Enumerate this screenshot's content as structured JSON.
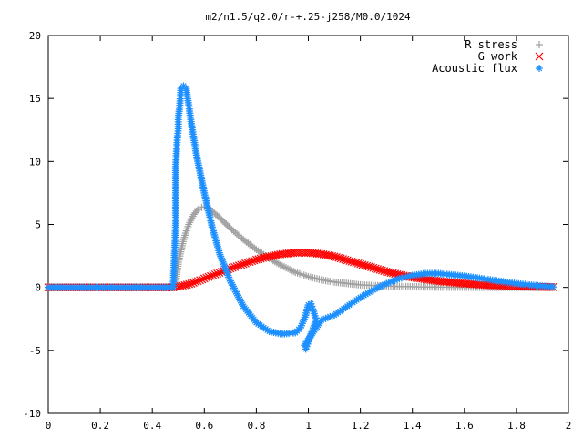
{
  "chart_data": {
    "type": "scatter",
    "title": "m2/n1.5/q2.0/r-+.25-j258/M0.0/1024",
    "xlabel": "",
    "ylabel": "",
    "xlim": [
      0,
      2
    ],
    "ylim": [
      -10,
      20
    ],
    "x_ticks": [
      0,
      0.2,
      0.4,
      0.6,
      0.8,
      1,
      1.2,
      1.4,
      1.6,
      1.8,
      2
    ],
    "y_ticks": [
      -10,
      -5,
      0,
      5,
      10,
      15,
      20
    ],
    "legend_position": "top-right",
    "grid": false,
    "series": [
      {
        "name": "R stress",
        "marker": "plus",
        "color": "#a0a0a0",
        "points": [
          [
            0.0,
            0.0
          ],
          [
            0.1,
            0.0
          ],
          [
            0.2,
            0.0
          ],
          [
            0.3,
            0.0
          ],
          [
            0.4,
            0.0
          ],
          [
            0.48,
            0.0
          ],
          [
            0.49,
            0.4
          ],
          [
            0.5,
            2.0
          ],
          [
            0.52,
            3.8
          ],
          [
            0.54,
            5.0
          ],
          [
            0.56,
            5.8
          ],
          [
            0.58,
            6.3
          ],
          [
            0.6,
            6.4
          ],
          [
            0.62,
            6.2
          ],
          [
            0.65,
            5.7
          ],
          [
            0.7,
            4.7
          ],
          [
            0.75,
            3.8
          ],
          [
            0.8,
            3.0
          ],
          [
            0.85,
            2.3
          ],
          [
            0.9,
            1.7
          ],
          [
            0.95,
            1.2
          ],
          [
            1.0,
            0.85
          ],
          [
            1.05,
            0.6
          ],
          [
            1.1,
            0.42
          ],
          [
            1.2,
            0.2
          ],
          [
            1.3,
            0.1
          ],
          [
            1.4,
            0.05
          ],
          [
            1.5,
            0.02
          ],
          [
            1.6,
            0.01
          ],
          [
            1.7,
            0.0
          ],
          [
            1.8,
            0.0
          ],
          [
            1.94,
            0.0
          ]
        ]
      },
      {
        "name": "G work",
        "marker": "cross",
        "color": "#ff0000",
        "points": [
          [
            0.0,
            0.0
          ],
          [
            0.1,
            0.0
          ],
          [
            0.2,
            0.0
          ],
          [
            0.3,
            0.0
          ],
          [
            0.4,
            0.0
          ],
          [
            0.48,
            0.0
          ],
          [
            0.5,
            0.05
          ],
          [
            0.55,
            0.3
          ],
          [
            0.6,
            0.7
          ],
          [
            0.65,
            1.1
          ],
          [
            0.7,
            1.5
          ],
          [
            0.75,
            1.85
          ],
          [
            0.8,
            2.2
          ],
          [
            0.85,
            2.45
          ],
          [
            0.9,
            2.65
          ],
          [
            0.95,
            2.75
          ],
          [
            1.0,
            2.75
          ],
          [
            1.05,
            2.65
          ],
          [
            1.1,
            2.45
          ],
          [
            1.15,
            2.15
          ],
          [
            1.2,
            1.85
          ],
          [
            1.25,
            1.55
          ],
          [
            1.3,
            1.25
          ],
          [
            1.35,
            1.0
          ],
          [
            1.4,
            0.8
          ],
          [
            1.5,
            0.5
          ],
          [
            1.6,
            0.3
          ],
          [
            1.7,
            0.17
          ],
          [
            1.8,
            0.08
          ],
          [
            1.94,
            0.02
          ]
        ]
      },
      {
        "name": "Acoustic flux",
        "marker": "star",
        "color": "#1e90ff",
        "points": [
          [
            0.0,
            0.0
          ],
          [
            0.1,
            0.0
          ],
          [
            0.2,
            0.0
          ],
          [
            0.3,
            0.0
          ],
          [
            0.4,
            0.0
          ],
          [
            0.48,
            0.0
          ],
          [
            0.49,
            5.1
          ],
          [
            0.49,
            9.6
          ],
          [
            0.495,
            11.5
          ],
          [
            0.5,
            12.6
          ],
          [
            0.5,
            13.5
          ],
          [
            0.505,
            14.3
          ],
          [
            0.51,
            15.8
          ],
          [
            0.52,
            16.0
          ],
          [
            0.53,
            15.8
          ],
          [
            0.54,
            14.5
          ],
          [
            0.55,
            13.0
          ],
          [
            0.57,
            10.5
          ],
          [
            0.6,
            7.5
          ],
          [
            0.63,
            4.8
          ],
          [
            0.66,
            2.6
          ],
          [
            0.7,
            0.5
          ],
          [
            0.75,
            -1.5
          ],
          [
            0.8,
            -2.8
          ],
          [
            0.85,
            -3.5
          ],
          [
            0.9,
            -3.7
          ],
          [
            0.95,
            -3.6
          ],
          [
            0.97,
            -3.2
          ],
          [
            0.99,
            -2.2
          ],
          [
            1.0,
            -1.4
          ],
          [
            1.01,
            -1.3
          ],
          [
            1.02,
            -1.9
          ],
          [
            1.03,
            -2.6
          ],
          [
            1.0,
            -4.3
          ],
          [
            0.99,
            -4.9
          ],
          [
            0.985,
            -4.6
          ],
          [
            1.05,
            -2.6
          ],
          [
            1.1,
            -2.2
          ],
          [
            1.15,
            -1.5
          ],
          [
            1.2,
            -0.8
          ],
          [
            1.25,
            -0.2
          ],
          [
            1.3,
            0.3
          ],
          [
            1.35,
            0.7
          ],
          [
            1.4,
            0.95
          ],
          [
            1.45,
            1.1
          ],
          [
            1.5,
            1.1
          ],
          [
            1.55,
            1.0
          ],
          [
            1.6,
            0.9
          ],
          [
            1.65,
            0.75
          ],
          [
            1.7,
            0.6
          ],
          [
            1.75,
            0.45
          ],
          [
            1.8,
            0.3
          ],
          [
            1.85,
            0.2
          ],
          [
            1.9,
            0.1
          ],
          [
            1.94,
            0.05
          ]
        ]
      }
    ]
  }
}
